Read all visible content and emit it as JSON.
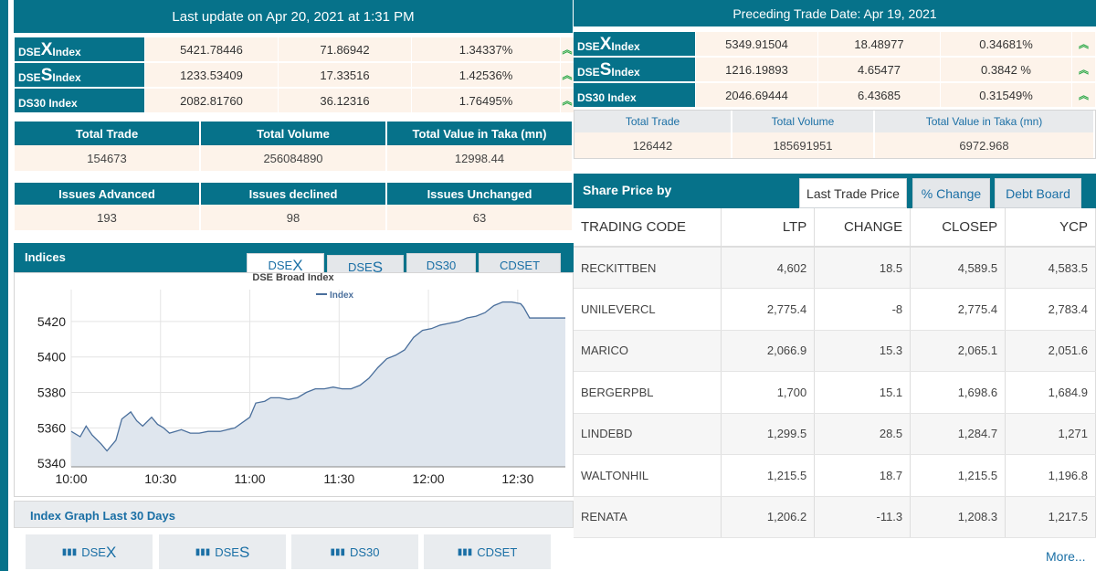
{
  "left": {
    "banner": "Last update on Apr 20, 2021 at 1:31 PM",
    "indices": [
      {
        "pre": "DSE",
        "big": "X",
        "post": " Index",
        "value": "5421.78446",
        "change": "71.86942",
        "pct": "1.34337%"
      },
      {
        "pre": "DSE",
        "big": "S",
        "post": " Index",
        "value": "1233.53409",
        "change": "17.33516",
        "pct": "1.42536%"
      },
      {
        "pre": "DS30 Index",
        "big": "",
        "post": "",
        "value": "2082.81760",
        "change": "36.12316",
        "pct": "1.76495%"
      }
    ],
    "trade": {
      "headers": [
        "Total Trade",
        "Total Volume",
        "Total Value in Taka (mn)"
      ],
      "values": [
        "154673",
        "256084890",
        "12998.44"
      ]
    },
    "issues": {
      "headers": [
        "Issues Advanced",
        "Issues declined",
        "Issues Unchanged"
      ],
      "values": [
        "193",
        "98",
        "63"
      ]
    },
    "indices_label": "Indices",
    "chart_tabs": [
      {
        "pre": "DSE",
        "big": "X"
      },
      {
        "pre": "DSE",
        "big": "S"
      },
      {
        "pre": "DS30",
        "big": ""
      },
      {
        "pre": "CDSET",
        "big": ""
      }
    ],
    "graph30_label": "Index Graph Last 30 Days",
    "bottom_buttons": [
      {
        "pre": "DSE",
        "big": "X"
      },
      {
        "pre": "DSE",
        "big": "S"
      },
      {
        "pre": "DS30",
        "big": ""
      },
      {
        "pre": "CDSET",
        "big": ""
      }
    ]
  },
  "right": {
    "banner": "Preceding Trade Date: Apr 19, 2021",
    "indices": [
      {
        "pre": "DSE",
        "big": "X",
        "post": " Index",
        "value": "5349.91504",
        "change": "18.48977",
        "pct": "0.34681%"
      },
      {
        "pre": "DSE",
        "big": "S",
        "post": " Index",
        "value": "1216.19893",
        "change": "4.65477",
        "pct": "0.3842 %"
      },
      {
        "pre": "DS30 Index",
        "big": "",
        "post": "",
        "value": "2046.69444",
        "change": "6.43685",
        "pct": "0.31549%"
      }
    ],
    "trade": {
      "headers": [
        "Total Trade",
        "Total Volume",
        "Total Value in Taka (mn)"
      ],
      "values": [
        "126442",
        "185691951",
        "6972.968"
      ]
    },
    "share_label": "Share Price by",
    "tabs": [
      "Last Trade Price",
      "% Change",
      "Debt Board"
    ],
    "table": {
      "headers": [
        "TRADING CODE",
        "LTP",
        "CHANGE",
        "CLOSEP",
        "YCP"
      ],
      "rows": [
        {
          "code": "RECKITTBEN",
          "ltp": "4,602",
          "change": "18.5",
          "closep": "4,589.5",
          "ycp": "4,583.5",
          "dir": "pos"
        },
        {
          "code": "UNILEVERCL",
          "ltp": "2,775.4",
          "change": "-8",
          "closep": "2,775.4",
          "ycp": "2,783.4",
          "dir": "neg"
        },
        {
          "code": "MARICO",
          "ltp": "2,066.9",
          "change": "15.3",
          "closep": "2,065.1",
          "ycp": "2,051.6",
          "dir": "pos"
        },
        {
          "code": "BERGERPBL",
          "ltp": "1,700",
          "change": "15.1",
          "closep": "1,698.6",
          "ycp": "1,684.9",
          "dir": "pos"
        },
        {
          "code": "LINDEBD",
          "ltp": "1,299.5",
          "change": "28.5",
          "closep": "1,284.7",
          "ycp": "1,271",
          "dir": "pos"
        },
        {
          "code": "WALTONHIL",
          "ltp": "1,215.5",
          "change": "18.7",
          "closep": "1,215.5",
          "ycp": "1,196.8",
          "dir": "pos"
        },
        {
          "code": "RENATA",
          "ltp": "1,206.2",
          "change": "-11.3",
          "closep": "1,208.3",
          "ycp": "1,217.5",
          "dir": "neg"
        }
      ]
    },
    "more": "More..."
  },
  "chart_data": {
    "type": "area",
    "title": "DSE Broad Index",
    "legend": [
      "Index"
    ],
    "legend_position": "top-right",
    "xlabel": "",
    "ylabel": "",
    "xticks": [
      "10:00",
      "10:30",
      "11:00",
      "11:30",
      "12:00",
      "12:30"
    ],
    "yticks": [
      5340,
      5360,
      5380,
      5400,
      5420
    ],
    "ylim": [
      5338,
      5438
    ],
    "xlim_minutes": [
      0,
      166
    ],
    "grid": true,
    "series": [
      {
        "name": "Index",
        "x": [
          0,
          3,
          5,
          7,
          10,
          12,
          15,
          17,
          20,
          22,
          24,
          27,
          29,
          31,
          33,
          35,
          37,
          40,
          43,
          46,
          50,
          55,
          60,
          62,
          65,
          67,
          70,
          73,
          76,
          79,
          82,
          85,
          88,
          91,
          94,
          97,
          100,
          103,
          106,
          109,
          112,
          115,
          118,
          121,
          124,
          127,
          130,
          133,
          136,
          139,
          142,
          145,
          148,
          151,
          152,
          154,
          156,
          158,
          160,
          163,
          166
        ],
        "y": [
          5358,
          5355,
          5361,
          5356,
          5351,
          5347,
          5353,
          5365,
          5369,
          5364,
          5361,
          5366,
          5362,
          5360,
          5357,
          5358,
          5359,
          5357,
          5357,
          5358,
          5358,
          5360,
          5366,
          5374,
          5375,
          5377,
          5377,
          5376,
          5377,
          5380,
          5382,
          5382,
          5383,
          5382,
          5382,
          5384,
          5388,
          5394,
          5399,
          5401,
          5404,
          5411,
          5415,
          5416,
          5418,
          5419,
          5420,
          5422,
          5423,
          5425,
          5429,
          5431,
          5431,
          5430,
          5428,
          5422,
          5422,
          5422,
          5422,
          5422,
          5422
        ]
      }
    ]
  }
}
